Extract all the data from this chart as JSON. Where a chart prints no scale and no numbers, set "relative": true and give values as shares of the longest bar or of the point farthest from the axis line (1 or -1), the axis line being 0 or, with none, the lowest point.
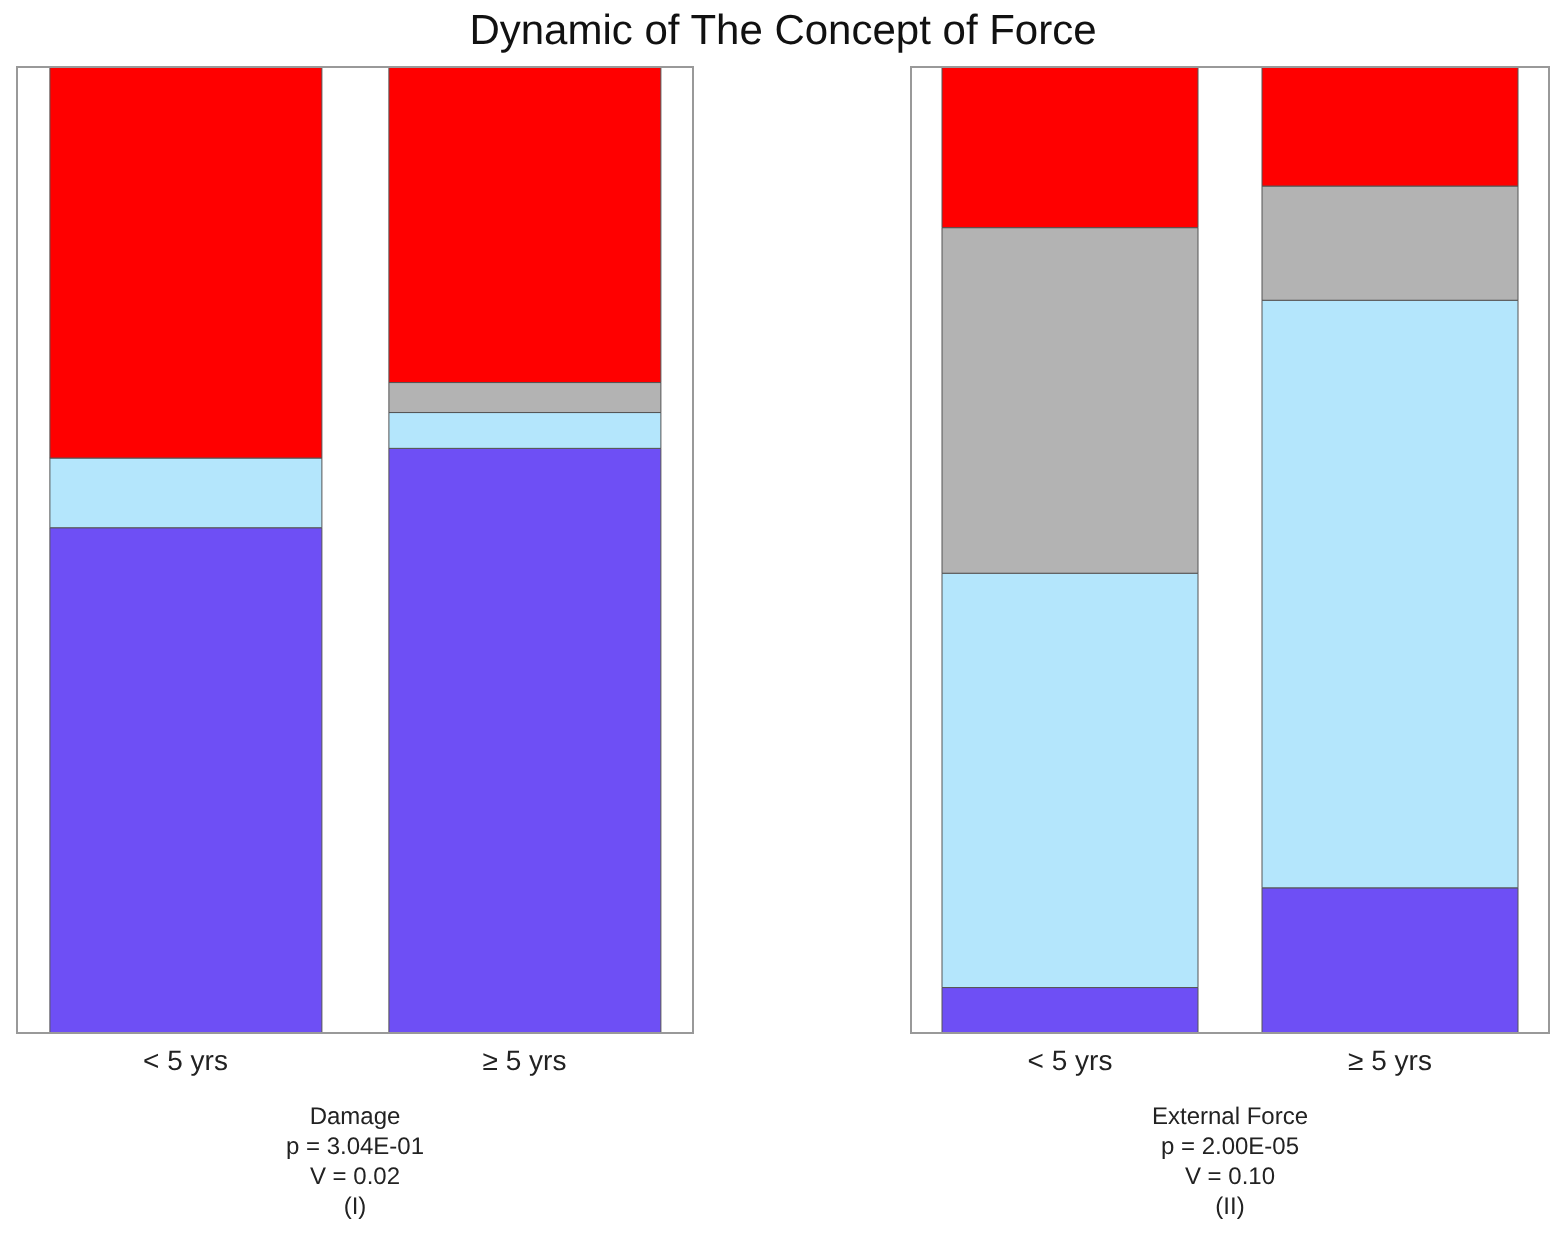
{
  "chart_data": [
    {
      "type": "bar",
      "title": "Dynamic of The Concept of Force",
      "xlabel": "Damage",
      "annotations": [
        "p = 3.04E-01",
        "V = 0.02",
        "(I)"
      ],
      "categories": [
        "< 5 yrs",
        "≥ 5 yrs"
      ],
      "stacked": true,
      "relative": true,
      "series": [
        {
          "color": "#6e4ff5",
          "values": [
            0.523,
            0.605
          ]
        },
        {
          "color": "#b4e6fc",
          "values": [
            0.072,
            0.037
          ]
        },
        {
          "color": "#b3b3b3",
          "values": [
            0,
            0.031
          ]
        },
        {
          "color": "#ff0000",
          "values": [
            0.405,
            0.327
          ]
        }
      ]
    },
    {
      "type": "bar",
      "xlabel": "External Force",
      "annotations": [
        "p = 2.00E-05",
        "V = 0.10",
        "(II)"
      ],
      "categories": [
        "< 5 yrs",
        "≥ 5 yrs"
      ],
      "stacked": true,
      "relative": true,
      "series": [
        {
          "color": "#6e4ff5",
          "values": [
            0.048,
            0.151
          ]
        },
        {
          "color": "#b4e6fc",
          "values": [
            0.428,
            0.607
          ]
        },
        {
          "color": "#b3b3b3",
          "values": [
            0.357,
            0.118
          ]
        },
        {
          "color": "#ff0000",
          "values": [
            0.167,
            0.124
          ]
        }
      ]
    }
  ]
}
